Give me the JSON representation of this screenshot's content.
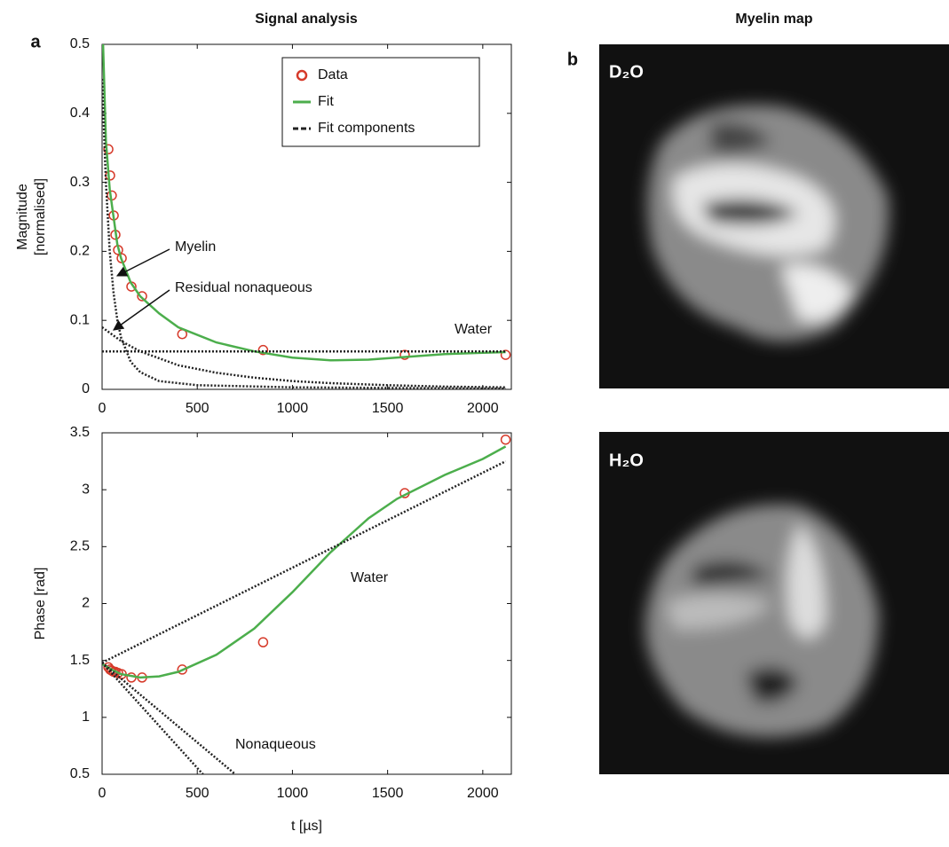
{
  "panel_a": {
    "label": "a",
    "title": "Signal analysis"
  },
  "panel_b": {
    "label": "b",
    "title": "Myelin map",
    "images": [
      "D₂O",
      "H₂O"
    ]
  },
  "chart_data": [
    {
      "type": "line",
      "ylabel": [
        "Magnitude",
        "[normalised]"
      ],
      "xlim": [
        0,
        2150
      ],
      "ylim": [
        0,
        0.5
      ],
      "xticks": [
        0,
        500,
        1000,
        1500,
        2000
      ],
      "yticks": [
        0,
        0.1,
        0.2,
        0.3,
        0.4,
        0.5
      ],
      "legend": "upper right",
      "annotations": [
        "Myelin",
        "Residual nonaqueous",
        "Water"
      ],
      "series": [
        {
          "name": "Data",
          "color": "#d63a2a",
          "marker": "circle",
          "x": [
            33,
            42,
            51,
            61,
            70,
            84,
            103,
            154,
            210,
            421,
            846,
            1590,
            2120
          ],
          "values": [
            0.348,
            0.31,
            0.281,
            0.252,
            0.224,
            0.202,
            0.19,
            0.149,
            0.135,
            0.08,
            0.057,
            0.05,
            0.05
          ]
        },
        {
          "name": "Fit",
          "color": "#4cae4c",
          "x": [
            5,
            20,
            40,
            60,
            80,
            100,
            150,
            200,
            300,
            400,
            600,
            800,
            1000,
            1200,
            1400,
            1600,
            1800,
            2000,
            2120
          ],
          "values": [
            0.5,
            0.36,
            0.29,
            0.25,
            0.21,
            0.19,
            0.155,
            0.135,
            0.11,
            0.09,
            0.068,
            0.055,
            0.046,
            0.042,
            0.043,
            0.047,
            0.051,
            0.053,
            0.054
          ]
        },
        {
          "name": "Fit components",
          "color": "#222222",
          "dashed": true,
          "curves": [
            {
              "x": [
                0,
                2120
              ],
              "values": [
                0.055,
                0.055
              ]
            },
            {
              "x": [
                0,
                20,
                40,
                60,
                80,
                100,
                150,
                200,
                300,
                500,
                1000,
                2120
              ],
              "values": [
                0.45,
                0.3,
                0.2,
                0.14,
                0.1,
                0.075,
                0.04,
                0.025,
                0.012,
                0.006,
                0.003,
                0.001
              ]
            },
            {
              "x": [
                0,
                100,
                200,
                400,
                600,
                800,
                1000,
                1200,
                1500,
                1800,
                2120
              ],
              "values": [
                0.09,
                0.07,
                0.055,
                0.035,
                0.024,
                0.017,
                0.012,
                0.009,
                0.006,
                0.004,
                0.003
              ]
            }
          ]
        }
      ]
    },
    {
      "type": "line",
      "ylabel": [
        "Phase [rad]"
      ],
      "xlabel": "t [µs]",
      "xlim": [
        0,
        2150
      ],
      "ylim": [
        0.5,
        3.5
      ],
      "xticks": [
        0,
        500,
        1000,
        1500,
        2000
      ],
      "yticks": [
        0.5,
        1,
        1.5,
        2,
        2.5,
        3,
        3.5
      ],
      "annotations": [
        "Water",
        "Nonaqueous"
      ],
      "series": [
        {
          "name": "Data",
          "color": "#d63a2a",
          "marker": "circle",
          "x": [
            33,
            42,
            51,
            61,
            70,
            84,
            103,
            154,
            210,
            421,
            846,
            1590,
            2120
          ],
          "values": [
            1.44,
            1.42,
            1.41,
            1.4,
            1.4,
            1.39,
            1.38,
            1.35,
            1.35,
            1.42,
            1.66,
            2.97,
            3.44
          ]
        },
        {
          "name": "Fit",
          "color": "#4cae4c",
          "x": [
            0,
            50,
            100,
            200,
            300,
            400,
            600,
            800,
            1000,
            1200,
            1400,
            1550,
            1800,
            2000,
            2120
          ],
          "values": [
            1.47,
            1.42,
            1.38,
            1.35,
            1.36,
            1.4,
            1.55,
            1.78,
            2.1,
            2.45,
            2.75,
            2.92,
            3.13,
            3.27,
            3.38
          ]
        },
        {
          "name": "Fit components",
          "color": "#222222",
          "dashed": true,
          "curves": [
            {
              "x": [
                0,
                2120
              ],
              "values": [
                1.48,
                3.25
              ]
            },
            {
              "x": [
                0,
                530
              ],
              "values": [
                1.48,
                0.5
              ]
            },
            {
              "x": [
                0,
                700
              ],
              "values": [
                1.48,
                0.5
              ]
            }
          ]
        }
      ]
    }
  ]
}
